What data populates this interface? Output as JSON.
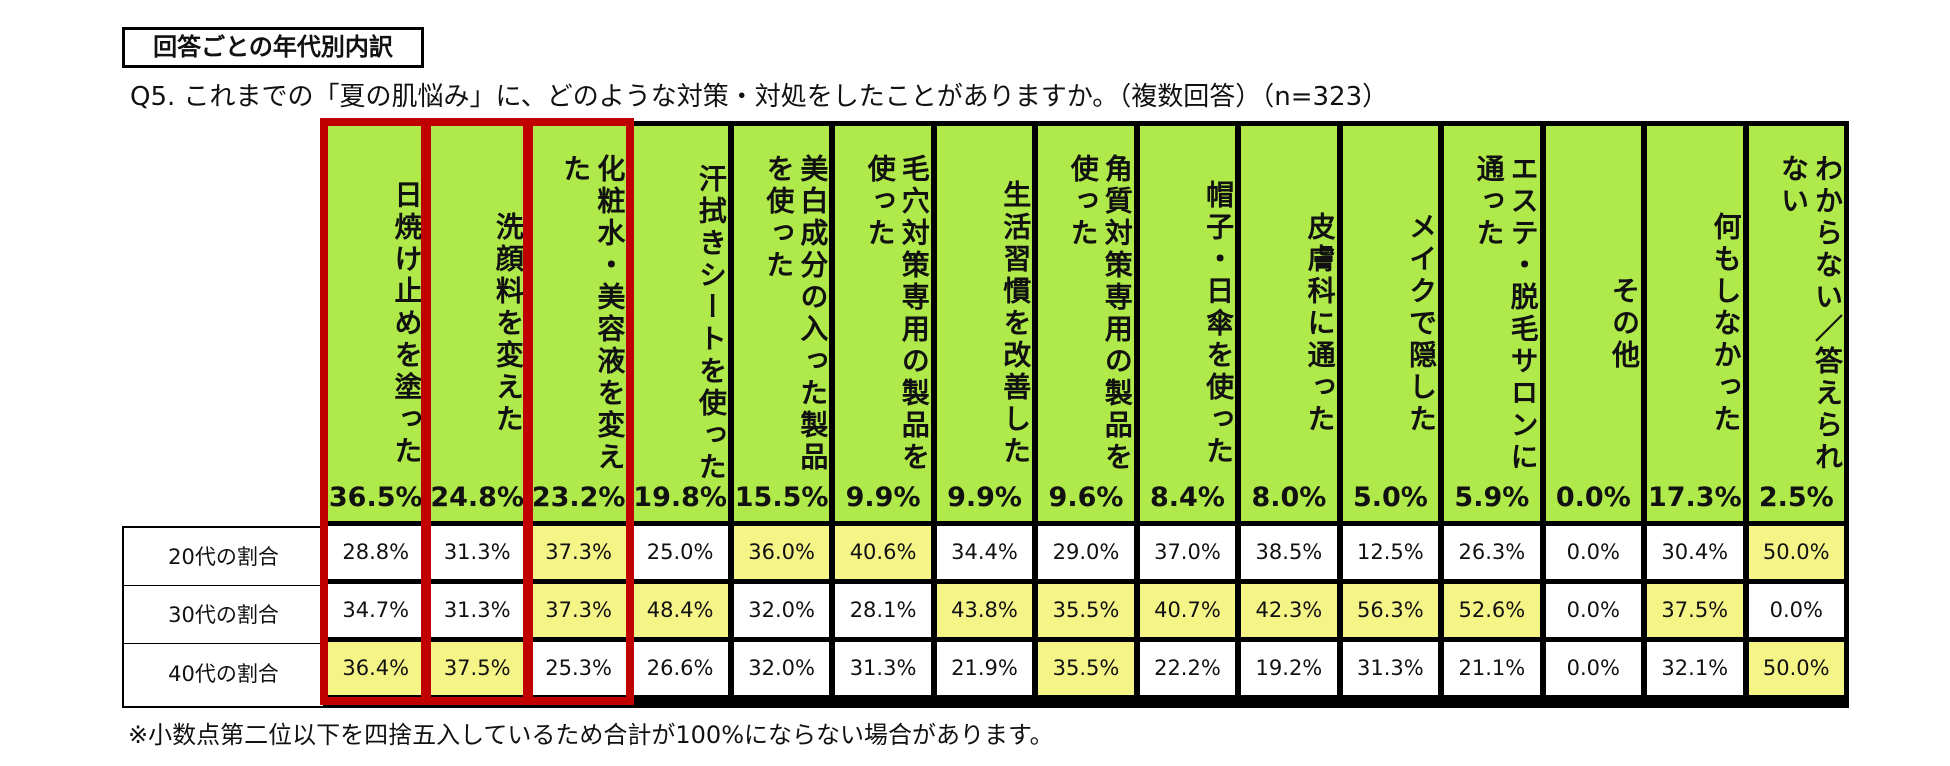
{
  "section_label": "回答ごとの年代別内訳",
  "question": "Q5. これまでの「夏の肌悩み」に、どのような対策・対処をしたことがありますか。（複数回答）（n=323）",
  "footnote": "※小数点第二位以下を四捨五入しているため合計が100%にならない場合があります。",
  "colors": {
    "header_bg": "#b0e94a",
    "highlight_cell": "#f4f487",
    "highlight_border": "#c00000"
  },
  "chart_data": {
    "type": "table",
    "categories": [
      "日焼け止めを塗った",
      "洗顔料を変えた",
      "化粧水・美容液を変えた",
      "汗拭きシートを使った",
      "美白成分の入った製品を使った",
      "毛穴対策専用の製品を使った",
      "生活習慣を改善した",
      "角質対策専用の製品を使った",
      "帽子・日傘を使った",
      "皮膚科に通った",
      "メイクで隠した",
      "エステ・脱毛サロンに通った",
      "その他",
      "何もしなかった",
      "わからない／答えられない"
    ],
    "totals": [
      "36.5%",
      "24.8%",
      "23.2%",
      "19.8%",
      "15.5%",
      "9.9%",
      "9.9%",
      "9.6%",
      "8.4%",
      "8.0%",
      "5.0%",
      "5.9%",
      "0.0%",
      "17.3%",
      "2.5%"
    ],
    "series": [
      {
        "name": "20代の割合",
        "values": [
          "28.8%",
          "31.3%",
          "37.3%",
          "25.0%",
          "36.0%",
          "40.6%",
          "34.4%",
          "29.0%",
          "37.0%",
          "38.5%",
          "12.5%",
          "26.3%",
          "0.0%",
          "30.4%",
          "50.0%"
        ],
        "highlighted": [
          false,
          false,
          true,
          false,
          true,
          true,
          false,
          false,
          false,
          false,
          false,
          false,
          false,
          false,
          true
        ]
      },
      {
        "name": "30代の割合",
        "values": [
          "34.7%",
          "31.3%",
          "37.3%",
          "48.4%",
          "32.0%",
          "28.1%",
          "43.8%",
          "35.5%",
          "40.7%",
          "42.3%",
          "56.3%",
          "52.6%",
          "0.0%",
          "37.5%",
          "0.0%"
        ],
        "highlighted": [
          false,
          false,
          true,
          true,
          false,
          false,
          true,
          true,
          true,
          true,
          true,
          true,
          false,
          true,
          false
        ]
      },
      {
        "name": "40代の割合",
        "values": [
          "36.4%",
          "37.5%",
          "25.3%",
          "26.6%",
          "32.0%",
          "31.3%",
          "21.9%",
          "35.5%",
          "22.2%",
          "19.2%",
          "31.3%",
          "21.1%",
          "0.0%",
          "32.1%",
          "50.0%"
        ],
        "highlighted": [
          true,
          true,
          false,
          false,
          false,
          false,
          false,
          true,
          false,
          false,
          false,
          false,
          false,
          false,
          true
        ]
      }
    ],
    "emphasized_columns": [
      0,
      1,
      2
    ]
  }
}
